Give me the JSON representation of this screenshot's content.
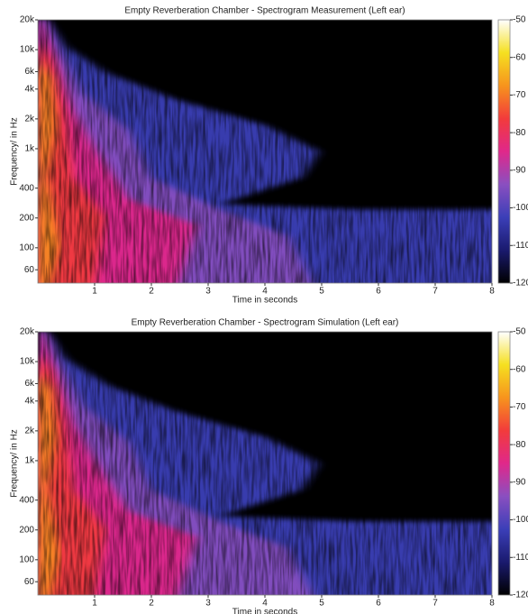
{
  "chart_data": [
    {
      "type": "spectrogram",
      "title": "Empty Reverberation Chamber - Spectrogram Measurement (Left ear)",
      "xlabel": "Time in seconds",
      "ylabel": "Frequency/ in Hz",
      "xlim": [
        0,
        8
      ],
      "xticks": [
        1,
        2,
        3,
        4,
        5,
        6,
        7,
        8
      ],
      "ylim": [
        44,
        20000
      ],
      "yscale": "log",
      "yticks": [
        60,
        100,
        200,
        400,
        {
          "value": 1000,
          "label": "1k"
        },
        {
          "value": 2000,
          "label": "2k"
        },
        {
          "value": 4000,
          "label": "4k"
        },
        {
          "value": 6000,
          "label": "6k"
        },
        {
          "value": 10000,
          "label": "10k"
        },
        {
          "value": 20000,
          "label": "20k"
        }
      ],
      "clim": [
        -120,
        -50
      ],
      "cticks": [
        -50,
        -60,
        -70,
        -80,
        -90,
        -100,
        -110,
        -120
      ],
      "colormap": [
        "#000000",
        "#1a1a6e",
        "#3b3fb8",
        "#8a4fc0",
        "#e0288a",
        "#f23b3b",
        "#f7941d",
        "#f5e020",
        "#ffffff"
      ]
    },
    {
      "type": "spectrogram",
      "title": "Empty Reverberation Chamber - Spectrogram Simulation (Left ear)",
      "xlabel": "Time in seconds",
      "ylabel": "Frequency/ in Hz",
      "xlim": [
        0,
        8
      ],
      "xticks": [
        1,
        2,
        3,
        4,
        5,
        6,
        7,
        8
      ],
      "ylim": [
        44,
        20000
      ],
      "yscale": "log",
      "yticks": [
        60,
        100,
        200,
        400,
        {
          "value": 1000,
          "label": "1k"
        },
        {
          "value": 2000,
          "label": "2k"
        },
        {
          "value": 4000,
          "label": "4k"
        },
        {
          "value": 6000,
          "label": "6k"
        },
        {
          "value": 10000,
          "label": "10k"
        },
        {
          "value": 20000,
          "label": "20k"
        }
      ],
      "clim": [
        -120,
        -50
      ],
      "cticks": [
        -50,
        -60,
        -70,
        -80,
        -90,
        -100,
        -110,
        -120
      ],
      "colormap": [
        "#000000",
        "#1a1a6e",
        "#3b3fb8",
        "#8a4fc0",
        "#e0288a",
        "#f23b3b",
        "#f7941d",
        "#f5e020",
        "#ffffff"
      ]
    }
  ]
}
